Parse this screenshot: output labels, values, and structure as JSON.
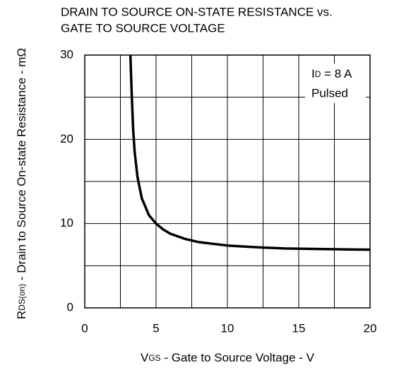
{
  "chart_data": {
    "type": "line",
    "title": [
      "DRAIN TO SOURCE ON-STATE RESISTANCE vs.",
      "GATE TO SOURCE VOLTAGE"
    ],
    "xlabel": {
      "main": "V",
      "sub": "GS",
      "rest": " - Gate to Source Voltage - V"
    },
    "ylabel": {
      "main": "R",
      "sub": "DS(on)",
      "rest": " - Drain to Source On-state Resistance - mΩ"
    },
    "annotation": {
      "main": "I",
      "sub": "D",
      "rest": " = 8 A",
      "line2": "Pulsed"
    },
    "xlim": [
      0,
      20
    ],
    "xticks": [
      0,
      5,
      10,
      15,
      20
    ],
    "xminor": [
      2.5,
      7.5,
      12.5,
      17.5
    ],
    "ylim": [
      0,
      30
    ],
    "yticks": [
      0,
      10,
      20,
      30
    ],
    "yminor": [
      5,
      15,
      25
    ],
    "grid": true,
    "series": [
      {
        "color": "#000000",
        "x": [
          3.2,
          3.3,
          3.4,
          3.5,
          3.7,
          4,
          4.5,
          5,
          5.5,
          6,
          7,
          8,
          9,
          10,
          12,
          14,
          16,
          18,
          20
        ],
        "values": [
          30,
          25,
          21,
          18.5,
          15.5,
          13,
          11,
          10,
          9.3,
          8.8,
          8.2,
          7.8,
          7.6,
          7.4,
          7.2,
          7.05,
          7.0,
          6.95,
          6.9
        ]
      }
    ]
  }
}
